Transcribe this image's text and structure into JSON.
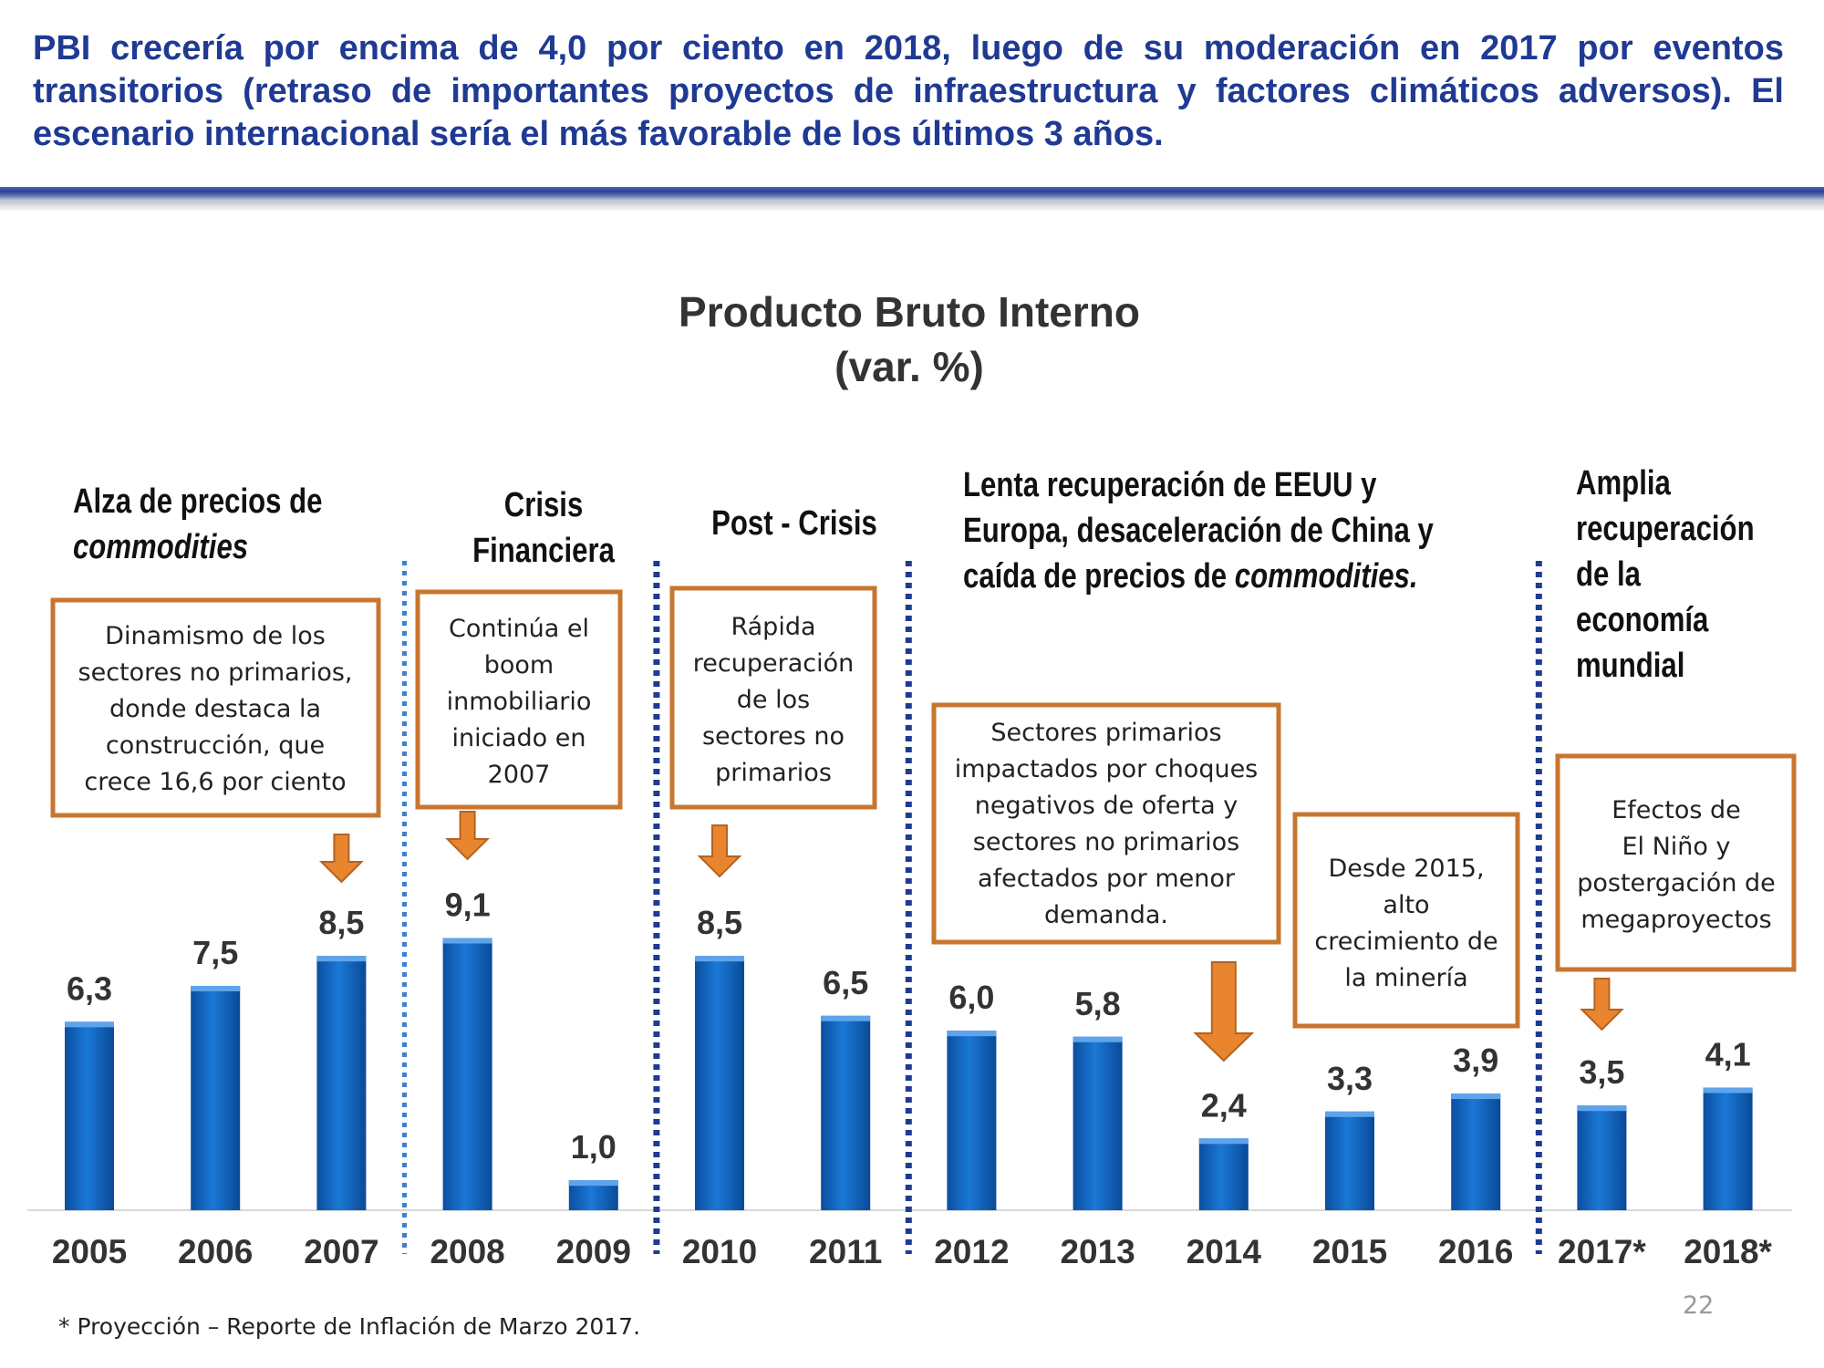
{
  "headline": "PBI crecería por encima de 4,0 por ciento en 2018, luego de su moderación en 2017 por eventos transitorios (retraso de importantes proyectos de infraestructura y factores climáticos adversos). El escenario internacional sería el más favorable de los últimos 3 años.",
  "footnote": "* Proyección – Reporte de Inflación de Marzo 2017.",
  "page_number": "22",
  "colors": {
    "headline": "#1f3a93",
    "bar": "#1466c0",
    "box_border": "#c8762f",
    "arrow": "#e8852e",
    "separator_light": "#3d7fd4",
    "separator_dark": "#1f3a93"
  },
  "chart_data": {
    "type": "bar",
    "title": "Producto Bruto Interno",
    "subtitle": "(var. %)",
    "categories": [
      "2005",
      "2006",
      "2007",
      "2008",
      "2009",
      "2010",
      "2011",
      "2012",
      "2013",
      "2014",
      "2015",
      "2016",
      "2017*",
      "2018*"
    ],
    "values": [
      6.3,
      7.5,
      8.5,
      9.1,
      1.0,
      8.5,
      6.5,
      6.0,
      5.8,
      2.4,
      3.3,
      3.9,
      3.5,
      4.1
    ],
    "value_labels": [
      "6,3",
      "7,5",
      "8,5",
      "9,1",
      "1,0",
      "8,5",
      "6,5",
      "6,0",
      "5,8",
      "2,4",
      "3,3",
      "3,9",
      "3,5",
      "4,1"
    ],
    "ylim": [
      0,
      10
    ],
    "grid": false,
    "legend": "none",
    "periods": [
      {
        "id": "commodities",
        "heading_lines": [
          {
            "text": "Alza de precios de",
            "italic": false
          },
          {
            "text": "commodities",
            "italic": true
          }
        ],
        "box_lines": [
          "Dinamismo de los",
          "sectores no primarios,",
          "donde destaca la",
          "construcción, que",
          "crece 16,6 por ciento"
        ],
        "arrow_category": "2007"
      },
      {
        "id": "crisis",
        "heading_lines": [
          {
            "text": "Crisis",
            "italic": false
          },
          {
            "text": "Financiera",
            "italic": false
          }
        ],
        "box_lines": [
          "Continúa el",
          "boom",
          "inmobiliario",
          "iniciado en",
          "2007"
        ],
        "arrow_category": "2008"
      },
      {
        "id": "post-crisis",
        "heading_lines": [
          {
            "text": "Post - Crisis",
            "italic": false
          }
        ],
        "box_lines": [
          "Rápida",
          "recuperación",
          "de los",
          "sectores no",
          "primarios"
        ],
        "arrow_category": "2010"
      },
      {
        "id": "slow-recovery",
        "heading_lines": [
          {
            "text": "Lenta recuperación de EEUU y",
            "italic": false
          },
          {
            "text": "Europa, desaceleración de China y",
            "italic": false
          },
          {
            "text": "caída de precios de ",
            "italic": false,
            "suffix_italic": "commodities."
          }
        ],
        "box_lines": [
          "Sectores primarios",
          "impactados por choques",
          "negativos de oferta y",
          "sectores no primarios",
          "afectados por menor",
          "demanda."
        ],
        "arrow_category": "2014",
        "box2_lines": [
          "Desde 2015,",
          "alto",
          "crecimiento de",
          "la minería"
        ]
      },
      {
        "id": "broad-recovery",
        "heading_lines": [
          {
            "text": "Amplia",
            "italic": false
          },
          {
            "text": "recuperación",
            "italic": false
          },
          {
            "text": "de la",
            "italic": false
          },
          {
            "text": "economía",
            "italic": false
          },
          {
            "text": "mundial",
            "italic": false
          }
        ],
        "box_lines": [
          "Efectos de",
          "El Niño y",
          "postergación de",
          "megaproyectos"
        ],
        "arrow_category": "2017*"
      }
    ],
    "separators": [
      {
        "between": [
          "2007",
          "2008"
        ],
        "style": "light"
      },
      {
        "between": [
          "2009",
          "2010"
        ],
        "style": "dark"
      },
      {
        "between": [
          "2011",
          "2012"
        ],
        "style": "dark"
      },
      {
        "between": [
          "2016",
          "2017*"
        ],
        "style": "dark"
      }
    ]
  }
}
